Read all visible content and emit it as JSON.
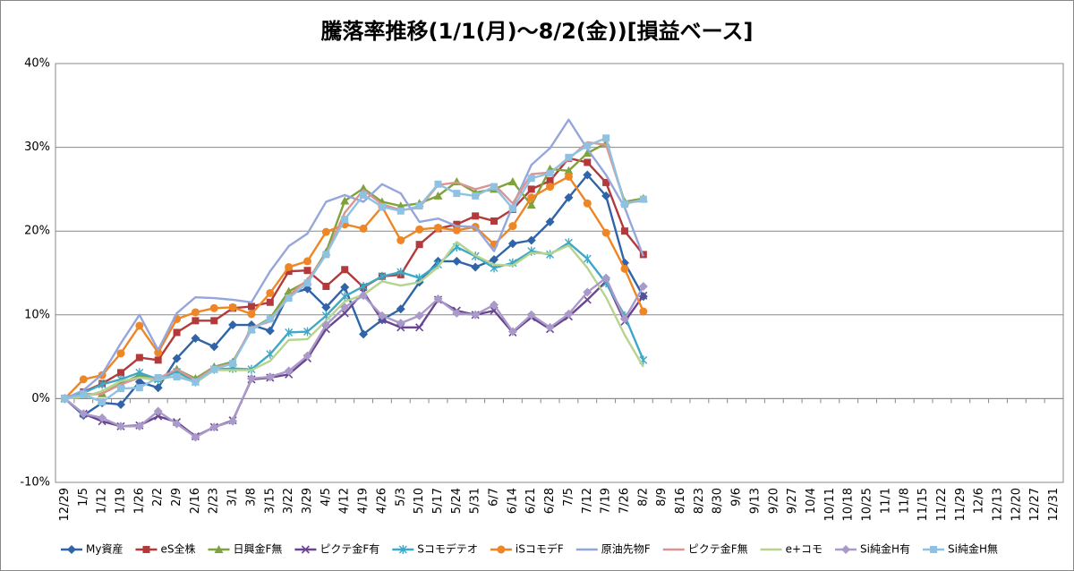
{
  "chart_data": {
    "type": "line",
    "title": "騰落率推移(1/1(月)～8/2(金))[損益ベース]",
    "categories": [
      "12/29",
      "1/5",
      "1/12",
      "1/19",
      "1/26",
      "2/2",
      "2/9",
      "2/16",
      "2/23",
      "3/1",
      "3/8",
      "3/15",
      "3/22",
      "3/29",
      "4/5",
      "4/12",
      "4/19",
      "4/26",
      "5/3",
      "5/10",
      "5/17",
      "5/24",
      "5/31",
      "6/7",
      "6/14",
      "6/21",
      "6/28",
      "7/5",
      "7/12",
      "7/19",
      "7/26",
      "8/2",
      "8/9",
      "8/16",
      "8/23",
      "8/30",
      "9/6",
      "9/13",
      "9/20",
      "9/27",
      "10/4",
      "10/11",
      "10/18",
      "10/25",
      "11/1",
      "11/8",
      "11/15",
      "11/22",
      "11/29",
      "12/6",
      "12/13",
      "12/20",
      "12/27",
      "12/31"
    ],
    "ylim": [
      -10,
      40
    ],
    "yticks": [
      {
        "value": -10,
        "label": "-10%"
      },
      {
        "value": 0,
        "label": "0%"
      },
      {
        "value": 10,
        "label": "10%"
      },
      {
        "value": 20,
        "label": "20%"
      },
      {
        "value": 30,
        "label": "30%"
      },
      {
        "value": 40,
        "label": "40%"
      }
    ],
    "grid": true,
    "legend": "bottom",
    "series": [
      {
        "name": "My資産",
        "color": "#3064a8",
        "marker": "diamond",
        "values": [
          0,
          -2,
          -0.5,
          -0.7,
          2,
          1.3,
          4.8,
          7.2,
          6.2,
          8.8,
          8.8,
          8.1,
          12.5,
          13.1,
          10.9,
          13.3,
          7.7,
          9.4,
          10.7,
          13.9,
          16.4,
          16.4,
          15.7,
          16.6,
          18.5,
          18.9,
          21.1,
          24,
          26.7,
          24.2,
          16.2,
          12.2,
          null,
          null,
          null,
          null,
          null,
          null,
          null,
          null,
          null,
          null,
          null,
          null,
          null,
          null,
          null,
          null,
          null,
          null,
          null,
          null,
          null,
          null
        ]
      },
      {
        "name": "eS全株",
        "color": "#b33a3a",
        "marker": "square",
        "values": [
          0,
          0.8,
          1.8,
          3.1,
          4.9,
          4.6,
          7.9,
          9.3,
          9.3,
          10.8,
          11,
          11.5,
          15.2,
          15.3,
          13.4,
          15.4,
          13.3,
          14.6,
          14.8,
          18.4,
          20.3,
          20.8,
          21.8,
          21.2,
          22.6,
          25,
          26,
          28.7,
          28.2,
          25.8,
          20,
          17.2,
          null,
          null,
          null,
          null,
          null,
          null,
          null,
          null,
          null,
          null,
          null,
          null,
          null,
          null,
          null,
          null,
          null,
          null,
          null,
          null,
          null,
          null
        ]
      },
      {
        "name": "日興金F無",
        "color": "#7fa33c",
        "marker": "triangle",
        "values": [
          0,
          0.5,
          0.6,
          1.8,
          2.8,
          2.4,
          3.5,
          2.4,
          3.8,
          4.4,
          8.3,
          9.6,
          12.8,
          14,
          17.5,
          23.6,
          25.1,
          23.5,
          23,
          23.3,
          24.2,
          25.9,
          24.6,
          25,
          25.9,
          23.1,
          27.4,
          27.2,
          29.3,
          30.5,
          23.5,
          23.9,
          null,
          null,
          null,
          null,
          null,
          null,
          null,
          null,
          null,
          null,
          null,
          null,
          null,
          null,
          null,
          null,
          null,
          null,
          null,
          null,
          null,
          null
        ]
      },
      {
        "name": "ピクテ金F有",
        "color": "#6a4592",
        "marker": "x",
        "values": [
          0,
          -1.8,
          -2.7,
          -3.3,
          -3.2,
          -2.1,
          -2.8,
          -4.5,
          -3.4,
          -2.6,
          2.3,
          2.5,
          2.9,
          4.8,
          8.3,
          10.2,
          12.7,
          9.4,
          8.5,
          8.5,
          11.8,
          10.5,
          10,
          10.5,
          7.9,
          9.7,
          8.3,
          9.8,
          11.8,
          14,
          9.2,
          12.3,
          null,
          null,
          null,
          null,
          null,
          null,
          null,
          null,
          null,
          null,
          null,
          null,
          null,
          null,
          null,
          null,
          null,
          null,
          null,
          null,
          null,
          null
        ]
      },
      {
        "name": "Sコモデテオ",
        "color": "#3ea8c6",
        "marker": "asterisk",
        "values": [
          0,
          0.7,
          1.7,
          2.3,
          3.1,
          2.3,
          3.2,
          2,
          3.5,
          3.6,
          3.5,
          5.3,
          7.9,
          8,
          9.9,
          12.2,
          13.4,
          14.6,
          15.1,
          14.4,
          16,
          18.1,
          17,
          15.6,
          16.2,
          17.6,
          17.2,
          18.6,
          16.7,
          13.8,
          9.9,
          4.6,
          null,
          null,
          null,
          null,
          null,
          null,
          null,
          null,
          null,
          null,
          null,
          null,
          null,
          null,
          null,
          null,
          null,
          null,
          null,
          null,
          null,
          null
        ]
      },
      {
        "name": "iSコモデF",
        "color": "#ef8626",
        "marker": "circle",
        "values": [
          0,
          2.3,
          2.8,
          5.4,
          8.7,
          5.5,
          9.5,
          10.3,
          10.8,
          10.9,
          10.1,
          12.6,
          15.7,
          16.4,
          19.9,
          20.8,
          20.3,
          22.9,
          18.9,
          20.2,
          20.4,
          20.1,
          20.5,
          18.4,
          20.6,
          24,
          25.3,
          26.5,
          23.3,
          19.8,
          15.5,
          10.4,
          null,
          null,
          null,
          null,
          null,
          null,
          null,
          null,
          null,
          null,
          null,
          null,
          null,
          null,
          null,
          null,
          null,
          null,
          null,
          null,
          null,
          null
        ]
      },
      {
        "name": "原油先物F",
        "color": "#95a6dc",
        "marker": "none",
        "values": [
          0,
          1,
          2.9,
          6.6,
          10,
          5.8,
          10.2,
          12.1,
          12,
          11.8,
          11.5,
          15.2,
          18.2,
          19.7,
          23.5,
          24.3,
          23.5,
          25.6,
          24.5,
          21.1,
          21.5,
          20.6,
          20.5,
          17.6,
          23,
          27.9,
          29.9,
          33.3,
          29.8,
          26.7,
          22.8,
          17,
          null,
          null,
          null,
          null,
          null,
          null,
          null,
          null,
          null,
          null,
          null,
          null,
          null,
          null,
          null,
          null,
          null,
          null,
          null,
          null,
          null,
          null
        ]
      },
      {
        "name": "ピクテ金F無",
        "color": "#d99594",
        "marker": "none",
        "values": [
          0,
          0.4,
          0.6,
          1.7,
          2.5,
          2.4,
          3.5,
          2.2,
          3.7,
          4.2,
          8.5,
          9.2,
          12.3,
          14.2,
          17.2,
          22.2,
          24.9,
          23.2,
          22.5,
          22.8,
          25.5,
          25.8,
          25,
          25.6,
          23.3,
          26.8,
          27,
          28.6,
          30.6,
          30.3,
          23.4,
          23.6,
          null,
          null,
          null,
          null,
          null,
          null,
          null,
          null,
          null,
          null,
          null,
          null,
          null,
          null,
          null,
          null,
          null,
          null,
          null,
          null,
          null,
          null
        ]
      },
      {
        "name": "e+コモ",
        "color": "#b7d48e",
        "marker": "none",
        "values": [
          0,
          0.2,
          0.9,
          2.1,
          2.5,
          2.2,
          2.8,
          1.9,
          3.4,
          3.4,
          3.4,
          4.5,
          7,
          7.1,
          9.3,
          11.6,
          12.4,
          14,
          13.5,
          13.9,
          15.7,
          18.7,
          17.1,
          16,
          15.9,
          17.4,
          17.3,
          18.3,
          15.6,
          12.1,
          7.6,
          3.8,
          null,
          null,
          null,
          null,
          null,
          null,
          null,
          null,
          null,
          null,
          null,
          null,
          null,
          null,
          null,
          null,
          null,
          null,
          null,
          null,
          null,
          null
        ]
      },
      {
        "name": "Si純金H有",
        "color": "#a99ac9",
        "marker": "diamond",
        "values": [
          0,
          -1.8,
          -2.3,
          -3.3,
          -3.3,
          -1.5,
          -3,
          -4.6,
          -3.4,
          -2.7,
          2.4,
          2.6,
          3.3,
          5.1,
          8.8,
          10.9,
          12.3,
          9.9,
          9,
          9.9,
          11.9,
          10.2,
          10,
          11.2,
          8,
          10,
          8.5,
          10.1,
          12.7,
          14.4,
          9.5,
          13.4,
          null,
          null,
          null,
          null,
          null,
          null,
          null,
          null,
          null,
          null,
          null,
          null,
          null,
          null,
          null,
          null,
          null,
          null,
          null,
          null,
          null,
          null
        ]
      },
      {
        "name": "Si純金H無",
        "color": "#8fc2e2",
        "marker": "square",
        "values": [
          0,
          0.5,
          -0.4,
          1.2,
          1.3,
          2.5,
          2.6,
          2,
          3.5,
          4.2,
          8.2,
          9.5,
          12,
          13.8,
          17.2,
          21.4,
          24.3,
          22.9,
          22.4,
          23,
          25.6,
          24.5,
          24.2,
          25.3,
          22.7,
          26.3,
          26.9,
          28.8,
          30.2,
          31.1,
          23.2,
          23.8,
          null,
          null,
          null,
          null,
          null,
          null,
          null,
          null,
          null,
          null,
          null,
          null,
          null,
          null,
          null,
          null,
          null,
          null,
          null,
          null,
          null,
          null
        ]
      }
    ]
  }
}
